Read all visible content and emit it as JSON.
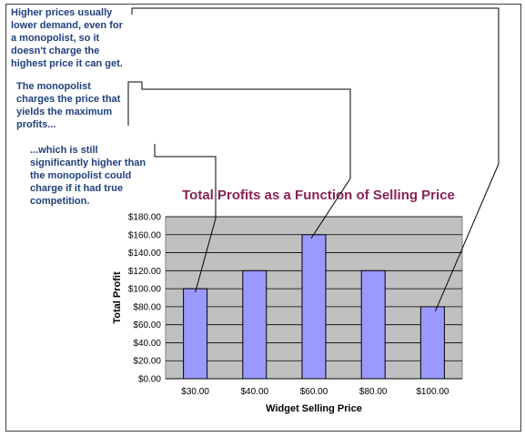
{
  "annotations": {
    "higher_prices": [
      "Higher prices usually",
      "lower demand, even for",
      "a monopolist, so it",
      "doesn't charge the",
      "highest price it can get."
    ],
    "max_profit": [
      "The monopolist",
      "charges the price that",
      "yields the maximum",
      "profits..."
    ],
    "still_higher": [
      "...which is still",
      "significantly higher than",
      "the monopolist could",
      "charge if it had true",
      "competition."
    ]
  },
  "colors": {
    "bar": "#9999ff",
    "plot_bg": "#c0c0c0",
    "title": "#8b2252",
    "annotation_text": "#1f3f7f"
  },
  "chart_data": {
    "type": "bar",
    "title": "Total Profits as a Function of Selling Price",
    "xlabel": "Widget Selling Price",
    "ylabel": "Total Profit",
    "categories": [
      "$30.00",
      "$40.00",
      "$60.00",
      "$80.00",
      "$100.00"
    ],
    "values": [
      100,
      120,
      160,
      120,
      80
    ],
    "ylim": [
      0,
      180
    ],
    "yticks": [
      "$0.00",
      "$20.00",
      "$40.00",
      "$60.00",
      "$80.00",
      "$100.00",
      "$120.00",
      "$140.00",
      "$160.00",
      "$180.00"
    ],
    "grid": true,
    "legend": "none"
  }
}
